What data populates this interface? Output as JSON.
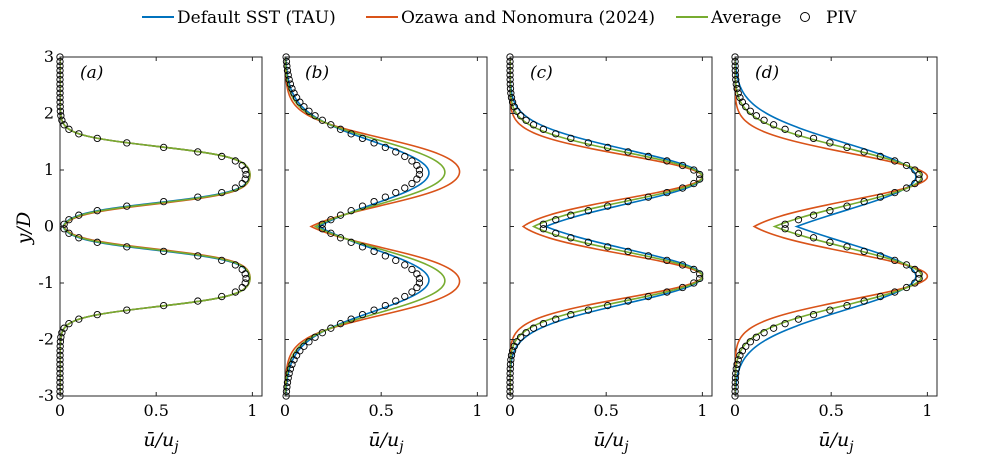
{
  "colors": {
    "sst": "#0072BD",
    "ozawa": "#D95319",
    "average": "#77AC30",
    "piv": "#000000"
  },
  "legend": {
    "sst": "Default SST (TAU)",
    "ozawa": "Ozawa and Nonomura (2024)",
    "average": "Average",
    "piv": "PIV"
  },
  "axes": {
    "ylabel": "y/D",
    "xlabel": "ū/u",
    "xlabel_sub": "j",
    "yticks": [
      3,
      2,
      1,
      0,
      -1,
      -2,
      -3
    ],
    "yticklabels": [
      "3",
      "2",
      "1",
      "0",
      "-1",
      "-2",
      "-3"
    ],
    "xticks": [
      0,
      0.5,
      1
    ],
    "xticklabels": [
      "0",
      "0.5",
      "1"
    ]
  },
  "chart_data": [
    {
      "type": "line",
      "panel_label": "(a)",
      "xlim": [
        0,
        1.05
      ],
      "ylim": [
        -3,
        3
      ],
      "series": [
        {
          "name": "Default SST (TAU)",
          "key": "sst",
          "peak": 1.0,
          "center": 0.92,
          "half_width": 0.5,
          "edge": 0.1,
          "shape": "tophat"
        },
        {
          "name": "Ozawa and Nonomura (2024)",
          "key": "ozawa",
          "peak": 1.0,
          "center": 0.91,
          "half_width": 0.51,
          "edge": 0.1,
          "shape": "tophat"
        },
        {
          "name": "Average",
          "key": "average",
          "peak": 1.0,
          "center": 0.915,
          "half_width": 0.505,
          "edge": 0.1,
          "shape": "tophat"
        },
        {
          "name": "PIV",
          "key": "piv",
          "peak": 0.98,
          "center": 0.92,
          "half_width": 0.5,
          "edge": 0.1,
          "shape": "tophat"
        }
      ]
    },
    {
      "type": "line",
      "panel_label": "(b)",
      "xlim": [
        0,
        1.05
      ],
      "ylim": [
        -3,
        3
      ],
      "series": [
        {
          "name": "Default SST (TAU)",
          "key": "sst",
          "peak": 1.0,
          "center": 0.95,
          "half_width": 0.52,
          "edge": 0.28,
          "shape": "tophat"
        },
        {
          "name": "Ozawa and Nonomura (2024)",
          "key": "ozawa",
          "peak": 1.0,
          "center": 0.97,
          "half_width": 0.6,
          "edge": 0.2,
          "shape": "tophat"
        },
        {
          "name": "Average",
          "key": "average",
          "peak": 1.0,
          "center": 0.96,
          "half_width": 0.56,
          "edge": 0.24,
          "shape": "tophat"
        },
        {
          "name": "PIV",
          "key": "piv",
          "peak": 0.99,
          "center": 0.96,
          "half_width": 0.5,
          "edge": 0.3,
          "shape": "tophat"
        }
      ]
    },
    {
      "type": "line",
      "panel_label": "(c)",
      "xlim": [
        0,
        1.05
      ],
      "ylim": [
        -3,
        3
      ],
      "series": [
        {
          "name": "Default SST (TAU)",
          "key": "sst",
          "peak": 1.0,
          "center": 0.88,
          "sigma": 0.48,
          "shape": "gauss"
        },
        {
          "name": "Ozawa and Nonomura (2024)",
          "key": "ozawa",
          "peak": 1.0,
          "center": 0.88,
          "sigma": 0.38,
          "shape": "gauss"
        },
        {
          "name": "Average",
          "key": "average",
          "peak": 1.0,
          "center": 0.88,
          "sigma": 0.43,
          "shape": "gauss"
        },
        {
          "name": "PIV",
          "key": "piv",
          "peak": 0.99,
          "center": 0.88,
          "sigma": 0.45,
          "shape": "gauss"
        }
      ]
    },
    {
      "type": "line",
      "panel_label": "(d)",
      "xlim": [
        0,
        1.05
      ],
      "ylim": [
        -3,
        3
      ],
      "series": [
        {
          "name": "Default SST (TAU)",
          "key": "sst",
          "peak": 0.94,
          "center": 0.88,
          "sigma": 0.6,
          "shape": "gauss"
        },
        {
          "name": "Ozawa and Nonomura (2024)",
          "key": "ozawa",
          "peak": 1.0,
          "center": 0.88,
          "sigma": 0.41,
          "shape": "gauss"
        },
        {
          "name": "Average",
          "key": "average",
          "peak": 0.97,
          "center": 0.88,
          "sigma": 0.5,
          "shape": "gauss"
        },
        {
          "name": "PIV",
          "key": "piv",
          "peak": 0.96,
          "center": 0.88,
          "sigma": 0.52,
          "shape": "gauss"
        }
      ]
    }
  ]
}
